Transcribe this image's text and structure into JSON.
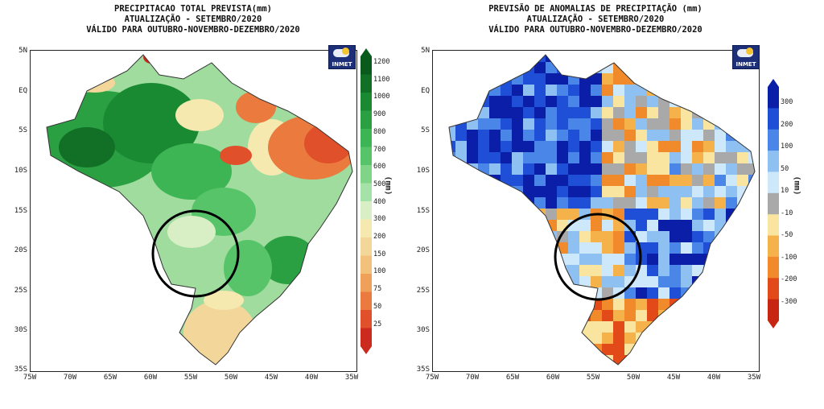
{
  "left_map": {
    "title_lines": [
      "PRECIPITACAO TOTAL PREVISTA(mm)",
      "ATUALIZAÇÃO - SETEMBRO/2020",
      "VÁLIDO PARA OUTUBRO-NOVEMBRO-DEZEMBRO/2020"
    ],
    "unit": "(mm)",
    "logo_text": "INMET",
    "colorbar": {
      "labels": [
        "1200",
        "1100",
        "1000",
        "900",
        "800",
        "700",
        "600",
        "500",
        "400",
        "300",
        "200",
        "150",
        "100",
        "75",
        "50",
        "25"
      ],
      "colors": [
        "#0a5a1c",
        "#117026",
        "#1a8a32",
        "#2ba043",
        "#3db554",
        "#58c46a",
        "#7fd488",
        "#a5e2a8",
        "#d8efc6",
        "#f6e9b0",
        "#f3d79a",
        "#f2c27c",
        "#efa15a",
        "#ea7a3d",
        "#e0502a",
        "#cc2a1e"
      ]
    },
    "highlight": "circle-marker"
  },
  "right_map": {
    "title_lines": [
      "PREVISÃO DE ANOMALIAS DE PRECIPITAÇÃO (mm)",
      "ATUALIZAÇÃO - SETEMBRO/2020",
      "VÁLIDO PARA OUTUBRO-NOVEMBRO-DEZEMBRO/2020"
    ],
    "unit": "(mm)",
    "logo_text": "INMET",
    "colorbar": {
      "labels": [
        "300",
        "200",
        "100",
        "50",
        "10",
        "-10",
        "-50",
        "-100",
        "-200",
        "-300"
      ],
      "colors": [
        "#0a1ea8",
        "#1f4fd6",
        "#4a86e8",
        "#8ec1f2",
        "#cde8fb",
        "#a9a9a9",
        "#f9e4a0",
        "#f6b24a",
        "#f08a2a",
        "#e24a1a",
        "#c62612"
      ]
    },
    "highlight": "circle-marker"
  },
  "axes": {
    "lat_ticks": [
      "5N",
      "EQ",
      "5S",
      "10S",
      "15S",
      "20S",
      "25S",
      "30S",
      "35S"
    ],
    "lon_ticks": [
      "75W",
      "70W",
      "65W",
      "60W",
      "55W",
      "50W",
      "45W",
      "40W",
      "35W"
    ]
  }
}
